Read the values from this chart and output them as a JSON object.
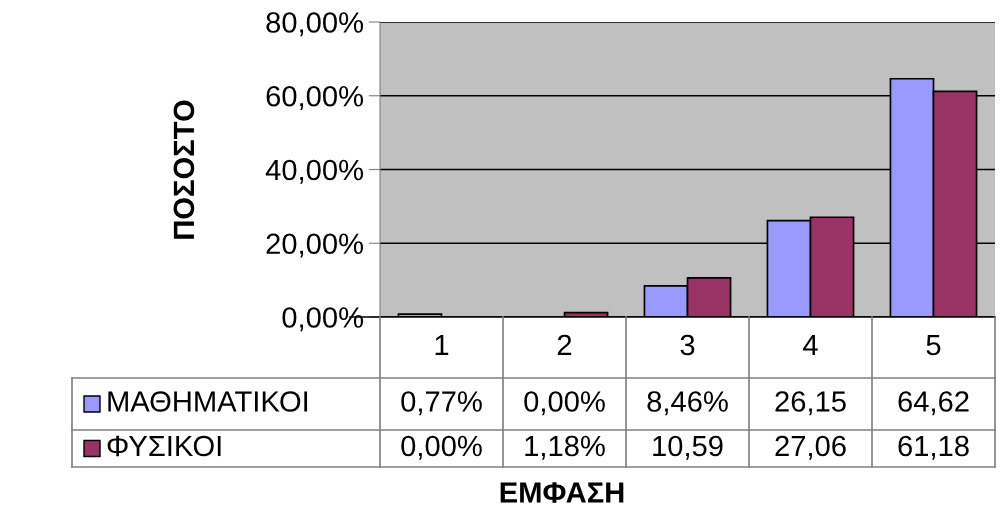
{
  "chart_data": {
    "type": "bar",
    "xlabel": "ΕΜΦΑΣΗ",
    "ylabel": "ΠΟΣΟΣΤΟ",
    "categories": [
      "1",
      "2",
      "3",
      "4",
      "5"
    ],
    "series": [
      {
        "name": "ΜΑΘΗΜΑΤΙΚΟΙ",
        "color": "#9999ff",
        "values": [
          0.77,
          0.0,
          8.46,
          26.15,
          64.62
        ],
        "value_labels": [
          "0,77%",
          "0,00%",
          "8,46%",
          "26,15",
          "64,62"
        ]
      },
      {
        "name": "ΦΥΣΙΚΟΙ",
        "color": "#993366",
        "values": [
          0.0,
          1.18,
          10.59,
          27.06,
          61.18
        ],
        "value_labels": [
          "0,00%",
          "1,18%",
          "10,59",
          "27,06",
          "61,18"
        ]
      }
    ],
    "ylim": [
      0,
      80
    ],
    "yticks": [
      {
        "value": 0,
        "label": "0,00%"
      },
      {
        "value": 20,
        "label": "20,00%"
      },
      {
        "value": 40,
        "label": "40,00%"
      },
      {
        "value": 60,
        "label": "60,00%"
      },
      {
        "value": 80,
        "label": "80,00%"
      }
    ],
    "grid": "y",
    "legend": "left"
  }
}
